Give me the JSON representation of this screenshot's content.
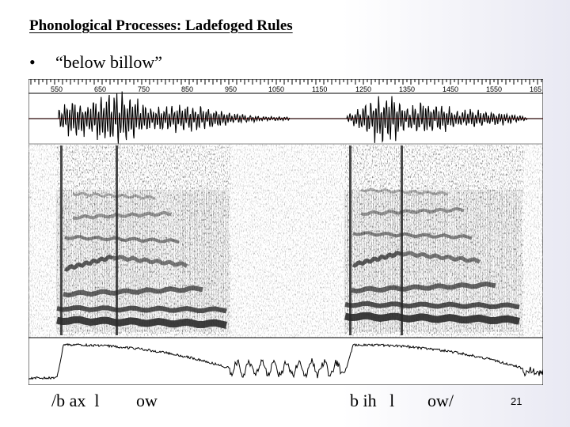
{
  "slide": {
    "title": "Phonological Processes: Ladefoged Rules",
    "bullet_symbol": "•",
    "bullet_text": "“below  billow”",
    "slide_number": "21"
  },
  "figure": {
    "ruler_ticks": [
      "550",
      "650",
      "750",
      "850",
      "950",
      "1050",
      "1150",
      "1250",
      "1350",
      "1450",
      "1550",
      "165"
    ],
    "colors": {
      "waveform": "#000000",
      "baseline": "#d02020",
      "spectrogram": "#2a2a2a"
    }
  },
  "phone_labels": [
    {
      "text": "/b ax  l"
    },
    {
      "text": "ow"
    },
    {
      "text": "b ih   l"
    },
    {
      "text": "ow/"
    }
  ]
}
